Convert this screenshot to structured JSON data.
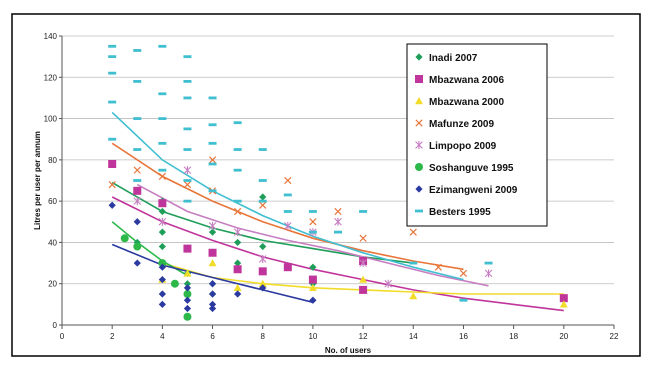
{
  "chart_data": {
    "type": "scatter",
    "xlabel": "No. of users",
    "ylabel": "Litres per user per annum",
    "xlim": [
      0,
      22
    ],
    "ylim": [
      0,
      140
    ],
    "x_ticks": [
      0,
      2,
      4,
      6,
      8,
      10,
      12,
      14,
      16,
      18,
      20,
      22
    ],
    "y_ticks": [
      0,
      20,
      40,
      60,
      80,
      100,
      120,
      140
    ],
    "grid": "horizontal",
    "legend_position": "top-right",
    "series": [
      {
        "name": "Inadi 2007",
        "color": "#1f9e5a",
        "marker": "diamond",
        "points": [
          [
            2.5,
            42
          ],
          [
            3,
            40
          ],
          [
            4,
            60
          ],
          [
            4,
            55
          ],
          [
            4,
            45
          ],
          [
            4,
            38
          ],
          [
            5,
            25
          ],
          [
            5,
            20
          ],
          [
            5,
            15
          ],
          [
            6,
            35
          ],
          [
            6,
            45
          ],
          [
            6,
            20
          ],
          [
            6,
            15
          ],
          [
            7,
            40
          ],
          [
            7,
            30
          ],
          [
            8,
            62
          ],
          [
            8,
            38
          ],
          [
            10,
            28
          ],
          [
            10,
            20
          ]
        ],
        "trend": [
          [
            2,
            69
          ],
          [
            4,
            55
          ],
          [
            6,
            47
          ],
          [
            8,
            41
          ],
          [
            10,
            37
          ],
          [
            12,
            33
          ],
          [
            14,
            30
          ]
        ]
      },
      {
        "name": "Mbazwana 2006",
        "color": "#c0359b",
        "marker": "square",
        "points": [
          [
            2,
            78
          ],
          [
            3,
            65
          ],
          [
            4,
            59
          ],
          [
            5,
            37
          ],
          [
            6,
            35
          ],
          [
            7,
            27
          ],
          [
            8,
            26
          ],
          [
            9,
            28
          ],
          [
            10,
            22
          ],
          [
            12,
            31
          ],
          [
            12,
            17
          ],
          [
            20,
            13
          ]
        ],
        "trend": [
          [
            2,
            62
          ],
          [
            4,
            50
          ],
          [
            6,
            41
          ],
          [
            8,
            33
          ],
          [
            10,
            27
          ],
          [
            12,
            22
          ],
          [
            14,
            17
          ],
          [
            16,
            13
          ],
          [
            18,
            10
          ],
          [
            20,
            7
          ]
        ]
      },
      {
        "name": "Mbazwana 2000",
        "color": "#f2dc2a",
        "marker": "triangle",
        "points": [
          [
            4,
            22
          ],
          [
            5,
            25
          ],
          [
            6,
            30
          ],
          [
            7,
            18
          ],
          [
            8,
            20
          ],
          [
            10,
            18
          ],
          [
            12,
            22
          ],
          [
            14,
            14
          ],
          [
            20,
            10
          ]
        ],
        "trend": [
          [
            4,
            30
          ],
          [
            6,
            23
          ],
          [
            8,
            20
          ],
          [
            10,
            18
          ],
          [
            12,
            17
          ],
          [
            14,
            16
          ],
          [
            16,
            15
          ],
          [
            18,
            15
          ],
          [
            20,
            15
          ]
        ]
      },
      {
        "name": "Mafunze 2009",
        "color": "#e8763a",
        "marker": "x",
        "points": [
          [
            2,
            68
          ],
          [
            3,
            75
          ],
          [
            4,
            72
          ],
          [
            5,
            68
          ],
          [
            6,
            65
          ],
          [
            6,
            80
          ],
          [
            7,
            55
          ],
          [
            8,
            58
          ],
          [
            9,
            70
          ],
          [
            10,
            50
          ],
          [
            11,
            55
          ],
          [
            12,
            42
          ],
          [
            14,
            45
          ],
          [
            15,
            28
          ],
          [
            16,
            25
          ]
        ],
        "trend": [
          [
            2,
            88
          ],
          [
            4,
            72
          ],
          [
            6,
            60
          ],
          [
            8,
            50
          ],
          [
            10,
            42
          ],
          [
            12,
            36
          ],
          [
            14,
            31
          ],
          [
            16,
            27
          ]
        ]
      },
      {
        "name": "Limpopo 2009",
        "color": "#c77ec2",
        "marker": "star",
        "points": [
          [
            3,
            60
          ],
          [
            4,
            50
          ],
          [
            5,
            75
          ],
          [
            6,
            48
          ],
          [
            7,
            45
          ],
          [
            8,
            32
          ],
          [
            9,
            48
          ],
          [
            10,
            45
          ],
          [
            11,
            50
          ],
          [
            12,
            30
          ],
          [
            13,
            20
          ],
          [
            17,
            25
          ]
        ],
        "trend": [
          [
            3,
            68
          ],
          [
            5,
            55
          ],
          [
            7,
            47
          ],
          [
            9,
            41
          ],
          [
            11,
            36
          ],
          [
            13,
            30
          ],
          [
            15,
            24
          ],
          [
            17,
            19
          ]
        ]
      },
      {
        "name": "Soshanguve 1995",
        "color": "#2db84a",
        "marker": "circle",
        "points": [
          [
            2.5,
            42
          ],
          [
            3,
            38
          ],
          [
            4,
            30
          ],
          [
            4.5,
            20
          ],
          [
            5,
            15
          ],
          [
            5,
            4
          ]
        ],
        "trend": [
          [
            2,
            50
          ],
          [
            3,
            40
          ],
          [
            4,
            31
          ],
          [
            5,
            24
          ]
        ]
      },
      {
        "name": "Ezimangweni 2009",
        "color": "#2b3aa0",
        "marker": "diamond",
        "points": [
          [
            2,
            58
          ],
          [
            3,
            50
          ],
          [
            3,
            30
          ],
          [
            4,
            28
          ],
          [
            4,
            22
          ],
          [
            4,
            15
          ],
          [
            4,
            10
          ],
          [
            5,
            18
          ],
          [
            5,
            12
          ],
          [
            5,
            8
          ],
          [
            6,
            20
          ],
          [
            6,
            15
          ],
          [
            6,
            10
          ],
          [
            6,
            8
          ],
          [
            7,
            15
          ],
          [
            8,
            18
          ],
          [
            10,
            12
          ]
        ],
        "trend": [
          [
            2,
            39
          ],
          [
            4,
            29
          ],
          [
            6,
            23
          ],
          [
            8,
            17
          ],
          [
            10,
            11
          ]
        ]
      },
      {
        "name": "Besters 1995",
        "color": "#3fbfd0",
        "marker": "dash",
        "points": [
          [
            2,
            135
          ],
          [
            2,
            130
          ],
          [
            2,
            122
          ],
          [
            2,
            108
          ],
          [
            2,
            90
          ],
          [
            3,
            133
          ],
          [
            3,
            118
          ],
          [
            3,
            100
          ],
          [
            3,
            85
          ],
          [
            3,
            70
          ],
          [
            4,
            135
          ],
          [
            4,
            112
          ],
          [
            4,
            100
          ],
          [
            4,
            88
          ],
          [
            4,
            75
          ],
          [
            5,
            130
          ],
          [
            5,
            118
          ],
          [
            5,
            110
          ],
          [
            5,
            95
          ],
          [
            5,
            85
          ],
          [
            5,
            70
          ],
          [
            5,
            60
          ],
          [
            6,
            110
          ],
          [
            6,
            97
          ],
          [
            6,
            88
          ],
          [
            6,
            78
          ],
          [
            6,
            65
          ],
          [
            7,
            98
          ],
          [
            7,
            85
          ],
          [
            7,
            75
          ],
          [
            7,
            60
          ],
          [
            8,
            85
          ],
          [
            8,
            70
          ],
          [
            8,
            60
          ],
          [
            9,
            63
          ],
          [
            9,
            55
          ],
          [
            10,
            55
          ],
          [
            10,
            45
          ],
          [
            11,
            45
          ],
          [
            12,
            55
          ],
          [
            14,
            30
          ],
          [
            16,
            12
          ],
          [
            17,
            30
          ]
        ],
        "trend": [
          [
            2,
            103
          ],
          [
            4,
            80
          ],
          [
            6,
            65
          ],
          [
            8,
            53
          ],
          [
            10,
            43
          ],
          [
            12,
            35
          ],
          [
            14,
            28
          ],
          [
            16,
            22
          ]
        ]
      }
    ]
  }
}
